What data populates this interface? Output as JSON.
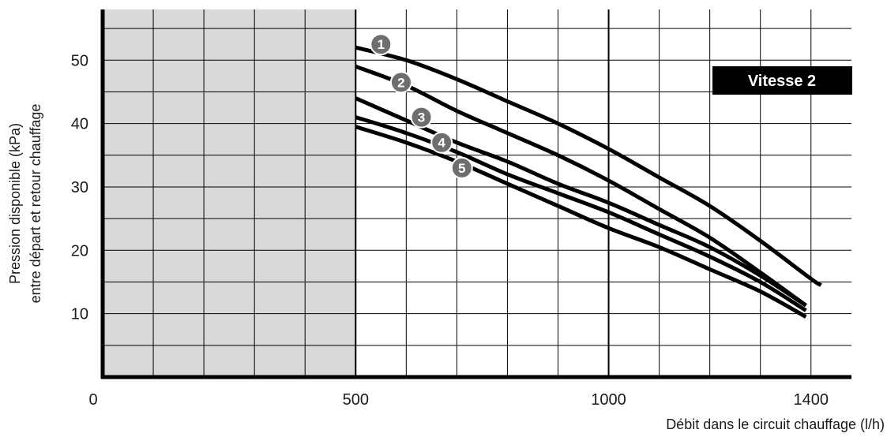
{
  "chart_data": {
    "type": "line",
    "xlabel": "Débit dans le circuit chauffage (l/h)",
    "ylabel_lines": [
      "Pression disponible (kPa)",
      "entre départ et retour chauffage"
    ],
    "xlim": [
      0,
      1480
    ],
    "ylim": [
      0,
      58
    ],
    "x_ticks": [
      0,
      500,
      1000,
      1400
    ],
    "y_ticks": [
      10,
      20,
      30,
      40,
      50
    ],
    "grid": true,
    "shaded_region": {
      "x": [
        0,
        500
      ],
      "color": "#d9d9d9"
    },
    "badge": "Vitesse 2",
    "series": [
      {
        "name": "1",
        "x": [
          500,
          600,
          700,
          800,
          900,
          1000,
          1100,
          1200,
          1300,
          1400,
          1420
        ],
        "y": [
          52,
          50,
          47,
          43.5,
          40,
          36,
          31.5,
          27,
          21.5,
          15.5,
          14.5
        ]
      },
      {
        "name": "2",
        "x": [
          500,
          600,
          700,
          800,
          900,
          1000,
          1100,
          1200,
          1300,
          1390
        ],
        "y": [
          49,
          46,
          42,
          38.5,
          35,
          31,
          26.5,
          22,
          16.5,
          11.3
        ]
      },
      {
        "name": "3",
        "x": [
          500,
          600,
          700,
          800,
          900,
          1000,
          1100,
          1200,
          1300,
          1390
        ],
        "y": [
          44,
          40.5,
          37,
          34,
          30.5,
          27.5,
          24,
          20.5,
          16,
          11.3
        ]
      },
      {
        "name": "4",
        "x": [
          500,
          600,
          700,
          800,
          900,
          1000,
          1100,
          1200,
          1300,
          1390
        ],
        "y": [
          41,
          38.5,
          35.5,
          32,
          29,
          26,
          22.5,
          19,
          15,
          10.5
        ]
      },
      {
        "name": "5",
        "x": [
          500,
          600,
          700,
          800,
          900,
          1000,
          1100,
          1200,
          1300,
          1390
        ],
        "y": [
          39.5,
          37,
          34,
          30.5,
          27,
          23.5,
          20.5,
          17,
          13.5,
          9.5
        ]
      }
    ],
    "curve_labels": [
      {
        "text": "1",
        "x": 550,
        "y": 52.5
      },
      {
        "text": "2",
        "x": 590,
        "y": 46.5
      },
      {
        "text": "3",
        "x": 630,
        "y": 41
      },
      {
        "text": "4",
        "x": 670,
        "y": 37
      },
      {
        "text": "5",
        "x": 710,
        "y": 33
      }
    ]
  }
}
